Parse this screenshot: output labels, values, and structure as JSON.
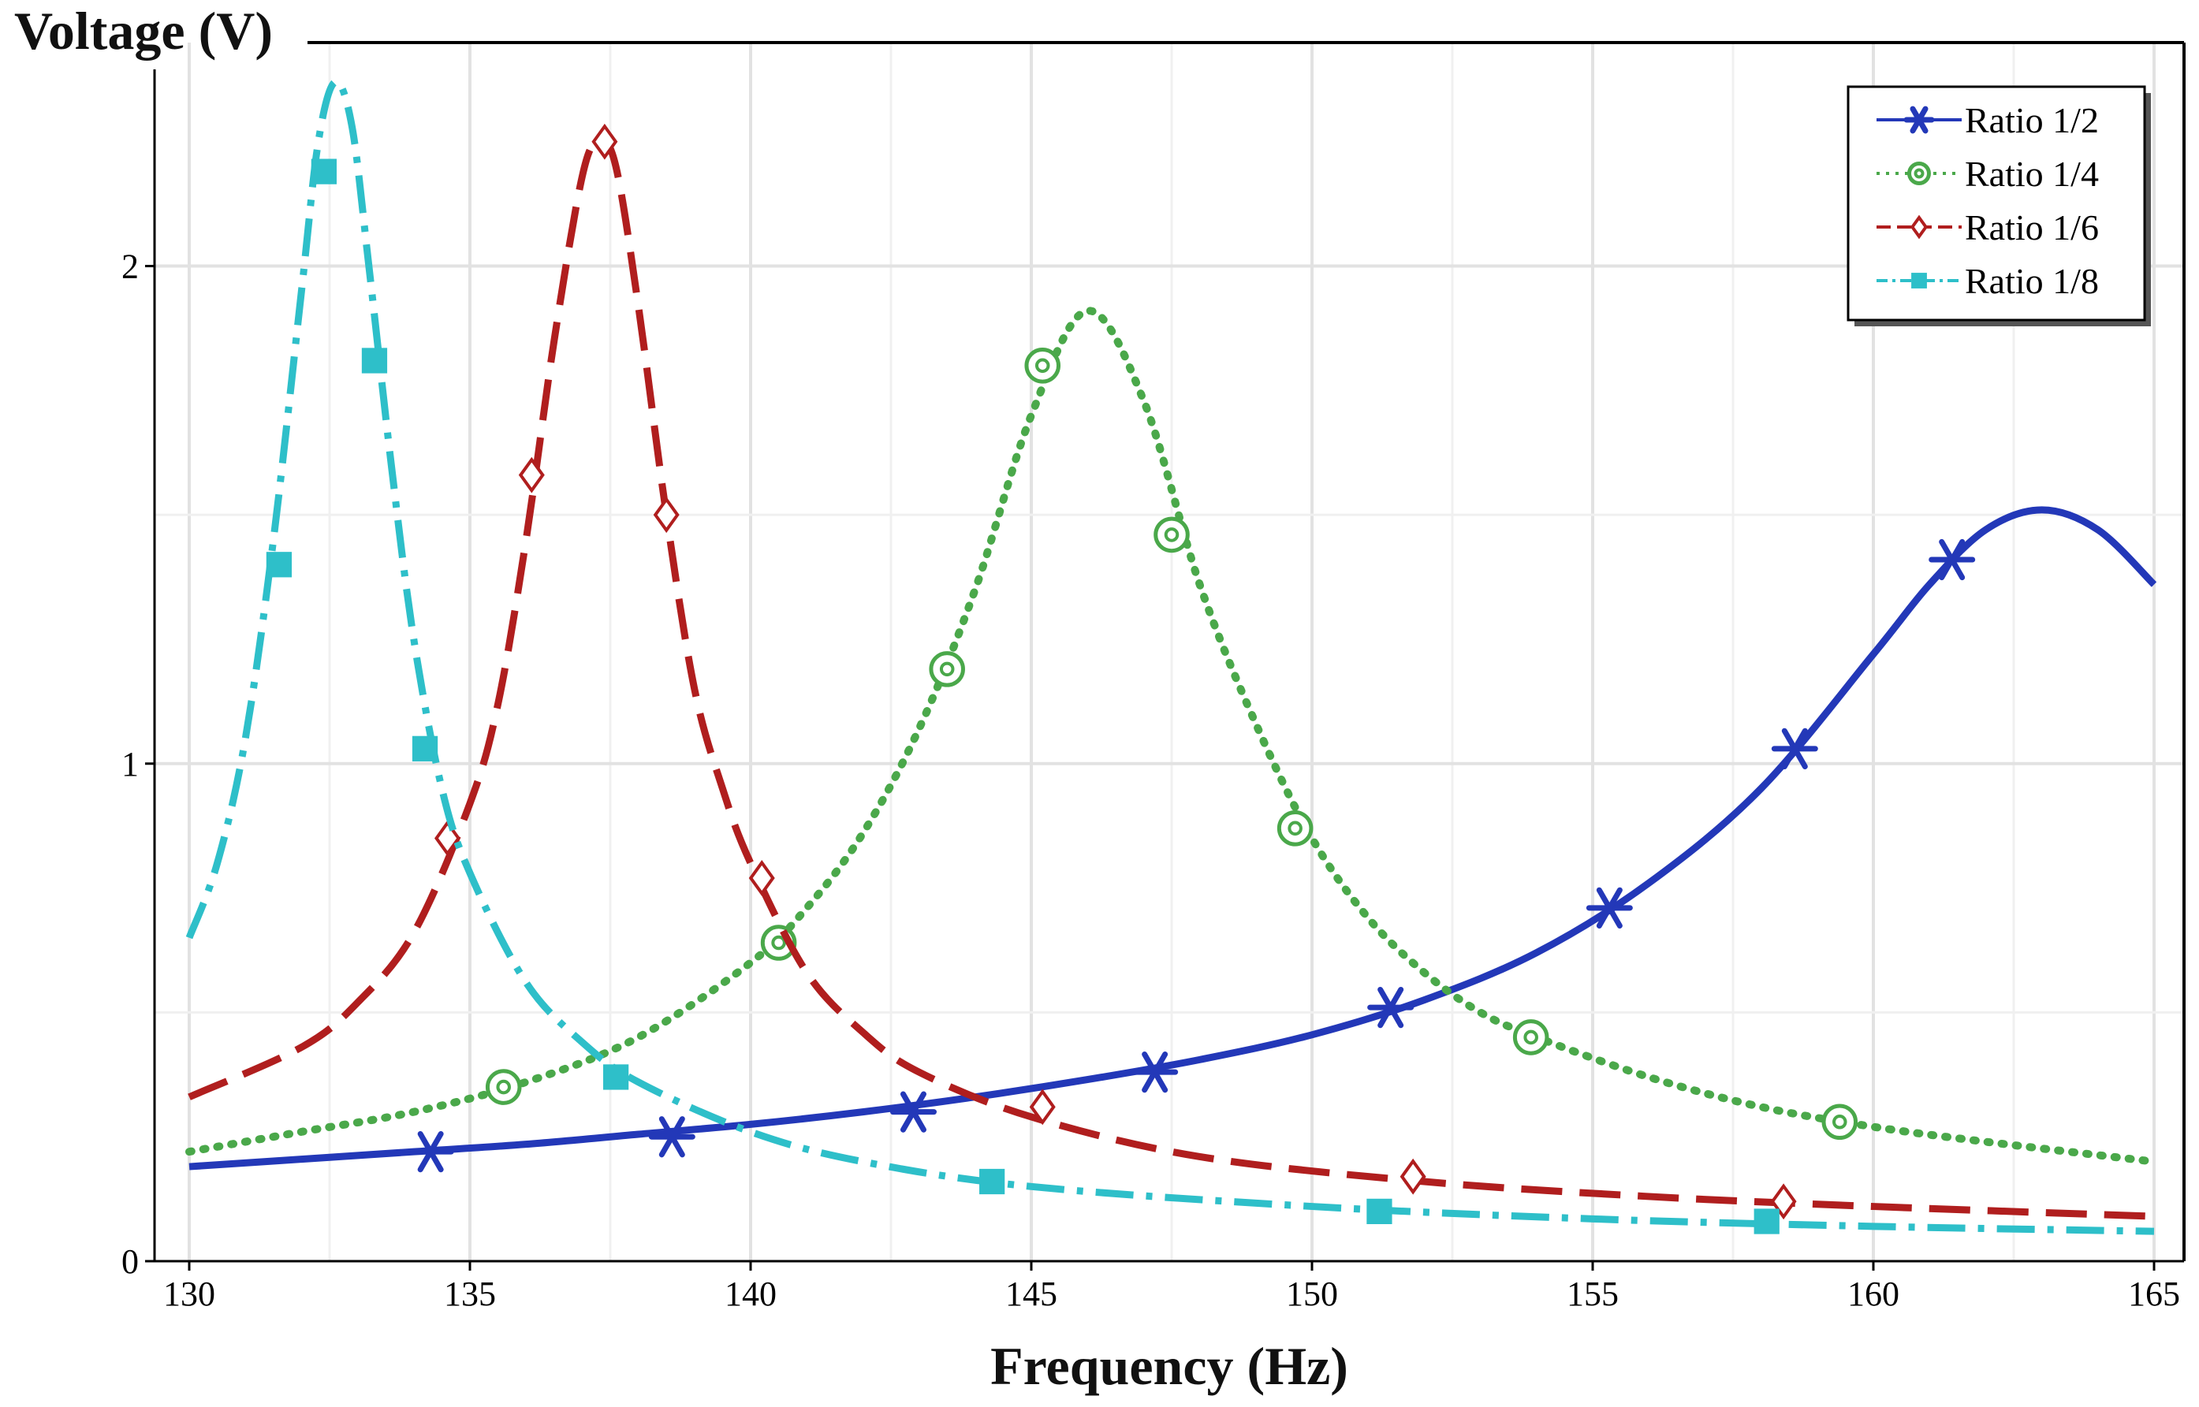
{
  "chart_data": {
    "type": "line",
    "title": "",
    "ylabel": "Voltage (V)",
    "xlabel": "Frequency (Hz)",
    "xlim": [
      130,
      165
    ],
    "ylim": [
      0,
      2.37
    ],
    "xticks": [
      130,
      135,
      140,
      145,
      150,
      155,
      160,
      165
    ],
    "yticks": [
      0,
      1,
      2
    ],
    "grid": true,
    "legend_position": "top-right",
    "series": [
      {
        "name": "Ratio 1/2",
        "color": "#2338b8",
        "line_style": "solid",
        "marker": "asterisk",
        "x": [
          130,
          132,
          134,
          136,
          138,
          140,
          142,
          144,
          146,
          148,
          150,
          152,
          154,
          156,
          158,
          160,
          161,
          162,
          163,
          164,
          165
        ],
        "y": [
          0.19,
          0.205,
          0.22,
          0.235,
          0.255,
          0.275,
          0.3,
          0.33,
          0.365,
          0.405,
          0.455,
          0.525,
          0.62,
          0.76,
          0.95,
          1.22,
          1.36,
          1.47,
          1.51,
          1.47,
          1.36
        ],
        "marker_x": [
          134.3,
          138.6,
          142.9,
          147.2,
          151.4,
          155.3,
          158.6,
          161.4
        ],
        "marker_y": [
          0.22,
          0.25,
          0.3,
          0.38,
          0.51,
          0.71,
          1.03,
          1.41
        ]
      },
      {
        "name": "Ratio 1/4",
        "color": "#4aa84a",
        "line_style": "dotted",
        "marker": "circle",
        "x": [
          130,
          132,
          134,
          136,
          138,
          140,
          141,
          142,
          143,
          144,
          145,
          146,
          147,
          148,
          149,
          150,
          151,
          152,
          153,
          154,
          156,
          158,
          160,
          162,
          165
        ],
        "y": [
          0.22,
          0.26,
          0.3,
          0.36,
          0.45,
          0.6,
          0.71,
          0.86,
          1.07,
          1.35,
          1.7,
          1.91,
          1.73,
          1.36,
          1.08,
          0.85,
          0.69,
          0.58,
          0.5,
          0.45,
          0.37,
          0.31,
          0.27,
          0.24,
          0.2
        ],
        "marker_x": [
          135.6,
          140.5,
          143.5,
          145.2,
          147.5,
          149.7,
          153.9,
          159.4
        ],
        "marker_y": [
          0.35,
          0.64,
          1.19,
          1.8,
          1.46,
          0.87,
          0.45,
          0.28
        ]
      },
      {
        "name": "Ratio 1/6",
        "color": "#b01e1e",
        "line_style": "dashed",
        "marker": "diamond",
        "x": [
          130,
          132,
          133,
          134,
          135,
          135.5,
          136,
          136.5,
          137,
          137.3,
          137.6,
          138,
          138.5,
          139,
          139.5,
          140,
          141,
          142,
          143,
          145,
          148,
          152,
          156,
          160,
          165
        ],
        "y": [
          0.33,
          0.43,
          0.52,
          0.66,
          0.92,
          1.12,
          1.45,
          1.85,
          2.18,
          2.25,
          2.2,
          1.92,
          1.5,
          1.15,
          0.95,
          0.8,
          0.58,
          0.46,
          0.38,
          0.29,
          0.21,
          0.16,
          0.13,
          0.11,
          0.09
        ],
        "marker_x": [
          134.6,
          136.1,
          137.4,
          138.5,
          140.2,
          145.2,
          151.8,
          158.4
        ],
        "marker_y": [
          0.85,
          1.58,
          2.25,
          1.5,
          0.77,
          0.31,
          0.17,
          0.12
        ]
      },
      {
        "name": "Ratio 1/8",
        "color": "#2ebfc9",
        "line_style": "dash-dot",
        "marker": "square",
        "x": [
          130,
          130.5,
          131,
          131.5,
          132,
          132.3,
          132.6,
          132.9,
          133.2,
          133.6,
          134,
          134.5,
          135,
          136,
          137,
          138,
          140,
          142,
          145,
          150,
          155,
          160,
          165
        ],
        "y": [
          0.65,
          0.8,
          1.05,
          1.45,
          1.95,
          2.25,
          2.37,
          2.28,
          2.0,
          1.6,
          1.25,
          0.95,
          0.78,
          0.56,
          0.44,
          0.36,
          0.26,
          0.2,
          0.15,
          0.11,
          0.085,
          0.07,
          0.06
        ],
        "marker_x": [
          131.6,
          132.4,
          133.3,
          134.2,
          137.6,
          144.3,
          151.2,
          158.1
        ],
        "marker_y": [
          1.4,
          2.19,
          1.81,
          1.03,
          0.37,
          0.16,
          0.1,
          0.08
        ]
      }
    ]
  }
}
